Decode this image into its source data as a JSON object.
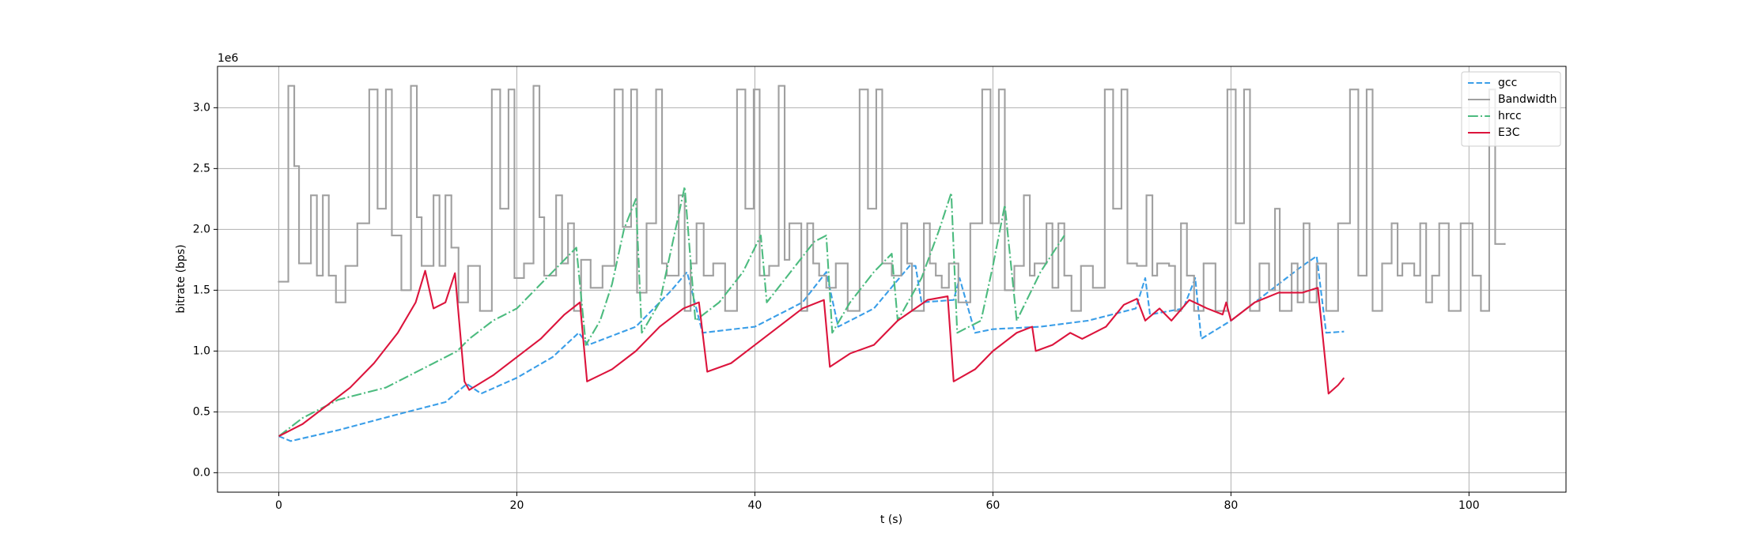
{
  "chart_data": {
    "type": "line",
    "xlabel": "t (s)",
    "ylabel": "bitrate (bps)",
    "y_offset_label": "1e6",
    "xlim": [
      -5.15,
      108.15
    ],
    "ylim": [
      -0.16,
      3.34
    ],
    "xticks": [
      0,
      20,
      40,
      60,
      80,
      100
    ],
    "yticks": [
      {
        "value": 0,
        "label": "0.0"
      },
      0.5,
      {
        "value": 1,
        "label": "1.0"
      },
      1.5,
      {
        "value": 2,
        "label": "2.0"
      },
      2.5,
      {
        "value": 3,
        "label": "3.0"
      }
    ],
    "grid": true,
    "legend": "upper right",
    "series": [
      {
        "name": "gcc",
        "color": "#3a9ee8",
        "linestyle": "dashed",
        "x": [
          0,
          1,
          5,
          10,
          14,
          15.8,
          17,
          20,
          23,
          25.2,
          26,
          30,
          33,
          34.3,
          35.6,
          40,
          44,
          46,
          47,
          50,
          53,
          53.5,
          54,
          56.7,
          57.2,
          58.5,
          60,
          64,
          68,
          72,
          72.8,
          73.2,
          76,
          77,
          77.5,
          80,
          82,
          84,
          86,
          87.2,
          88,
          89.5
        ],
        "values": [
          0.3,
          0.26,
          0.35,
          0.48,
          0.58,
          0.73,
          0.65,
          0.78,
          0.95,
          1.15,
          1.05,
          1.2,
          1.5,
          1.65,
          1.15,
          1.2,
          1.4,
          1.65,
          1.2,
          1.35,
          1.7,
          1.7,
          1.4,
          1.42,
          1.6,
          1.15,
          1.18,
          1.2,
          1.25,
          1.35,
          1.6,
          1.3,
          1.35,
          1.6,
          1.1,
          1.25,
          1.4,
          1.55,
          1.7,
          1.78,
          1.15,
          1.16
        ]
      },
      {
        "name": "Bandwidth",
        "color": "#a0a0a0",
        "linestyle": "solid",
        "drawstyle": "steps-post",
        "x": [
          0,
          0.8,
          1.3,
          1.7,
          2.7,
          3.2,
          3.7,
          4.2,
          4.8,
          5.6,
          6.6,
          7.6,
          8.3,
          9.0,
          9.5,
          10.3,
          11.1,
          11.6,
          12.0,
          13.0,
          13.5,
          14.0,
          14.5,
          15.1,
          15.9,
          16.9,
          17.9,
          18.6,
          19.3,
          19.8,
          20.6,
          21.4,
          21.9,
          22.3,
          23.3,
          23.8,
          24.3,
          24.8,
          25.4,
          26.2,
          27.2,
          28.2,
          28.9,
          29.6,
          30.1,
          30.9,
          31.7,
          32.2,
          32.6,
          33.6,
          34.1,
          34.6,
          35.1,
          35.7,
          36.5,
          37.5,
          38.5,
          39.2,
          39.9,
          40.4,
          41.2,
          42.0,
          42.5,
          42.9,
          43.9,
          44.4,
          44.9,
          45.4,
          46.0,
          46.8,
          47.8,
          48.8,
          49.5,
          50.2,
          50.7,
          51.5,
          52.3,
          52.8,
          53.2,
          54.2,
          54.7,
          55.2,
          55.7,
          56.3,
          57.1,
          58.1,
          59.1,
          59.8,
          60.5,
          61.0,
          61.8,
          62.6,
          63.1,
          63.5,
          64.5,
          65.0,
          65.5,
          66.0,
          66.6,
          67.4,
          68.4,
          69.4,
          70.1,
          70.8,
          71.3,
          72.1,
          72.9,
          73.4,
          73.8,
          74.8,
          75.3,
          75.8,
          76.3,
          76.9,
          77.7,
          78.7,
          79.7,
          80.4,
          81.1,
          81.6,
          82.4,
          83.2,
          83.7,
          84.1,
          85.1,
          85.6,
          86.1,
          86.6,
          87.2,
          88.0,
          89.0,
          90.0,
          90.7,
          91.4,
          91.9,
          92.7,
          93.5,
          94.0,
          94.4,
          95.4,
          95.9,
          96.4,
          96.9,
          97.5,
          98.3,
          99.3,
          100.3,
          101.0,
          101.7,
          102.2,
          103.0
        ],
        "values": [
          1.57,
          3.18,
          2.52,
          1.72,
          2.28,
          1.62,
          2.28,
          1.62,
          1.4,
          1.7,
          2.05,
          3.15,
          2.17,
          3.15,
          1.95,
          1.5,
          3.18,
          2.1,
          1.7,
          2.28,
          1.7,
          2.28,
          1.85,
          1.4,
          1.7,
          1.33,
          3.15,
          2.17,
          3.15,
          1.6,
          1.72,
          3.18,
          2.1,
          1.62,
          2.28,
          1.72,
          2.05,
          1.33,
          1.75,
          1.52,
          1.7,
          3.15,
          2.02,
          3.15,
          1.48,
          2.05,
          3.15,
          1.72,
          1.62,
          2.28,
          1.33,
          1.72,
          2.05,
          1.62,
          1.72,
          1.33,
          3.15,
          2.17,
          3.15,
          1.62,
          1.7,
          3.18,
          1.75,
          2.05,
          1.33,
          2.05,
          1.72,
          1.62,
          1.52,
          1.72,
          1.33,
          3.15,
          2.17,
          3.15,
          1.72,
          1.62,
          2.05,
          1.72,
          1.33,
          2.05,
          1.72,
          1.62,
          1.52,
          1.72,
          1.4,
          2.05,
          3.15,
          2.05,
          3.15,
          1.5,
          1.7,
          2.28,
          1.62,
          1.72,
          2.05,
          1.52,
          2.05,
          1.62,
          1.33,
          1.7,
          1.52,
          3.15,
          2.17,
          3.15,
          1.72,
          1.7,
          2.28,
          1.62,
          1.72,
          1.7,
          1.33,
          2.05,
          1.62,
          1.33,
          1.72,
          1.33,
          3.15,
          2.05,
          3.15,
          1.33,
          1.72,
          1.5,
          2.17,
          1.33,
          1.72,
          1.4,
          2.05,
          1.4,
          1.72,
          1.33,
          2.05,
          3.15,
          1.62,
          3.15,
          1.33,
          1.72,
          2.05,
          1.62,
          1.72,
          1.62,
          2.05,
          1.4,
          1.62,
          2.05,
          1.33,
          2.05,
          1.62,
          1.33,
          3.15,
          1.88,
          1.88
        ]
      },
      {
        "name": "hrcc",
        "color": "#4cbb7f",
        "linestyle": "dashdot",
        "x": [
          0,
          2,
          5,
          7,
          9,
          11,
          13,
          15,
          16,
          18,
          20,
          22,
          24,
          25,
          25.8,
          27,
          28,
          29,
          30,
          30.5,
          32,
          33,
          34.1,
          35,
          37,
          39,
          40.5,
          41,
          43,
          45,
          46,
          46.5,
          48,
          50,
          51.5,
          52,
          54,
          55.5,
          56.5,
          57,
          59,
          60,
          61,
          62,
          64,
          66
        ],
        "values": [
          0.3,
          0.45,
          0.6,
          0.65,
          0.7,
          0.8,
          0.9,
          1.0,
          1.1,
          1.25,
          1.35,
          1.55,
          1.75,
          1.85,
          1.05,
          1.25,
          1.55,
          2.0,
          2.25,
          1.15,
          1.4,
          1.85,
          2.35,
          1.25,
          1.4,
          1.65,
          1.95,
          1.4,
          1.65,
          1.9,
          1.95,
          1.15,
          1.4,
          1.65,
          1.8,
          1.25,
          1.6,
          2.0,
          2.3,
          1.15,
          1.25,
          1.7,
          2.2,
          1.25,
          1.65,
          1.95
        ]
      },
      {
        "name": "E3C",
        "color": "#dc143c",
        "linestyle": "solid",
        "x": [
          0,
          2,
          4,
          6,
          8,
          10,
          11.5,
          12.3,
          13,
          14,
          14.8,
          15.6,
          16,
          18,
          20,
          22,
          24,
          25.3,
          25.9,
          28,
          30,
          32,
          34,
          35.3,
          36,
          38,
          40,
          42,
          44,
          45.8,
          46.3,
          48,
          50,
          52,
          54.5,
          56.2,
          56.7,
          58.5,
          60,
          62,
          63.3,
          63.6,
          65,
          66.5,
          67.5,
          69.5,
          71,
          72.1,
          72.8,
          74,
          75,
          76.5,
          78,
          79.3,
          79.6,
          80,
          82,
          84,
          86,
          87.3,
          88.2,
          89,
          89.5
        ],
        "values": [
          0.3,
          0.4,
          0.55,
          0.7,
          0.9,
          1.15,
          1.4,
          1.66,
          1.35,
          1.4,
          1.64,
          0.75,
          0.68,
          0.8,
          0.95,
          1.1,
          1.3,
          1.4,
          0.75,
          0.85,
          1.0,
          1.2,
          1.35,
          1.4,
          0.83,
          0.9,
          1.05,
          1.2,
          1.35,
          1.42,
          0.87,
          0.98,
          1.05,
          1.25,
          1.42,
          1.45,
          0.75,
          0.85,
          1.0,
          1.15,
          1.2,
          1.0,
          1.05,
          1.15,
          1.1,
          1.2,
          1.38,
          1.43,
          1.25,
          1.35,
          1.25,
          1.42,
          1.35,
          1.3,
          1.4,
          1.25,
          1.4,
          1.48,
          1.48,
          1.52,
          0.65,
          0.72,
          0.78
        ]
      }
    ]
  }
}
